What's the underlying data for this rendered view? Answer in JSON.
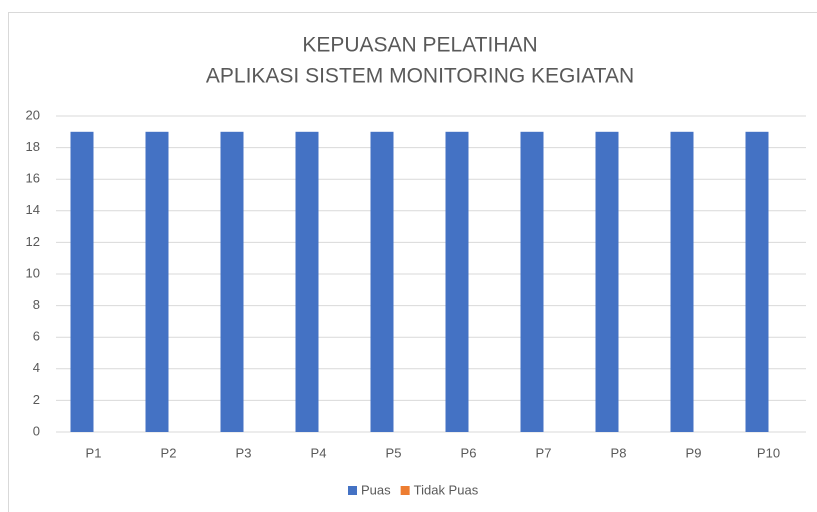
{
  "chart_data": {
    "type": "bar",
    "title": [
      "KEPUASAN PELATIHAN",
      "APLIKASI SISTEM MONITORING KEGIATAN"
    ],
    "categories": [
      "P1",
      "P2",
      "P3",
      "P4",
      "P5",
      "P6",
      "P7",
      "P8",
      "P9",
      "P10"
    ],
    "series": [
      {
        "name": "Puas",
        "color": "#4472c4",
        "values": [
          19,
          19,
          19,
          19,
          19,
          19,
          19,
          19,
          19,
          19
        ]
      },
      {
        "name": "Tidak Puas",
        "color": "#ed7d31",
        "values": [
          0,
          0,
          0,
          0,
          0,
          0,
          0,
          0,
          0,
          0
        ]
      }
    ],
    "ylim": [
      0,
      20
    ],
    "yticks": [
      0,
      2,
      4,
      6,
      8,
      10,
      12,
      14,
      16,
      18,
      20
    ],
    "grid": true,
    "legend": "bottom"
  }
}
